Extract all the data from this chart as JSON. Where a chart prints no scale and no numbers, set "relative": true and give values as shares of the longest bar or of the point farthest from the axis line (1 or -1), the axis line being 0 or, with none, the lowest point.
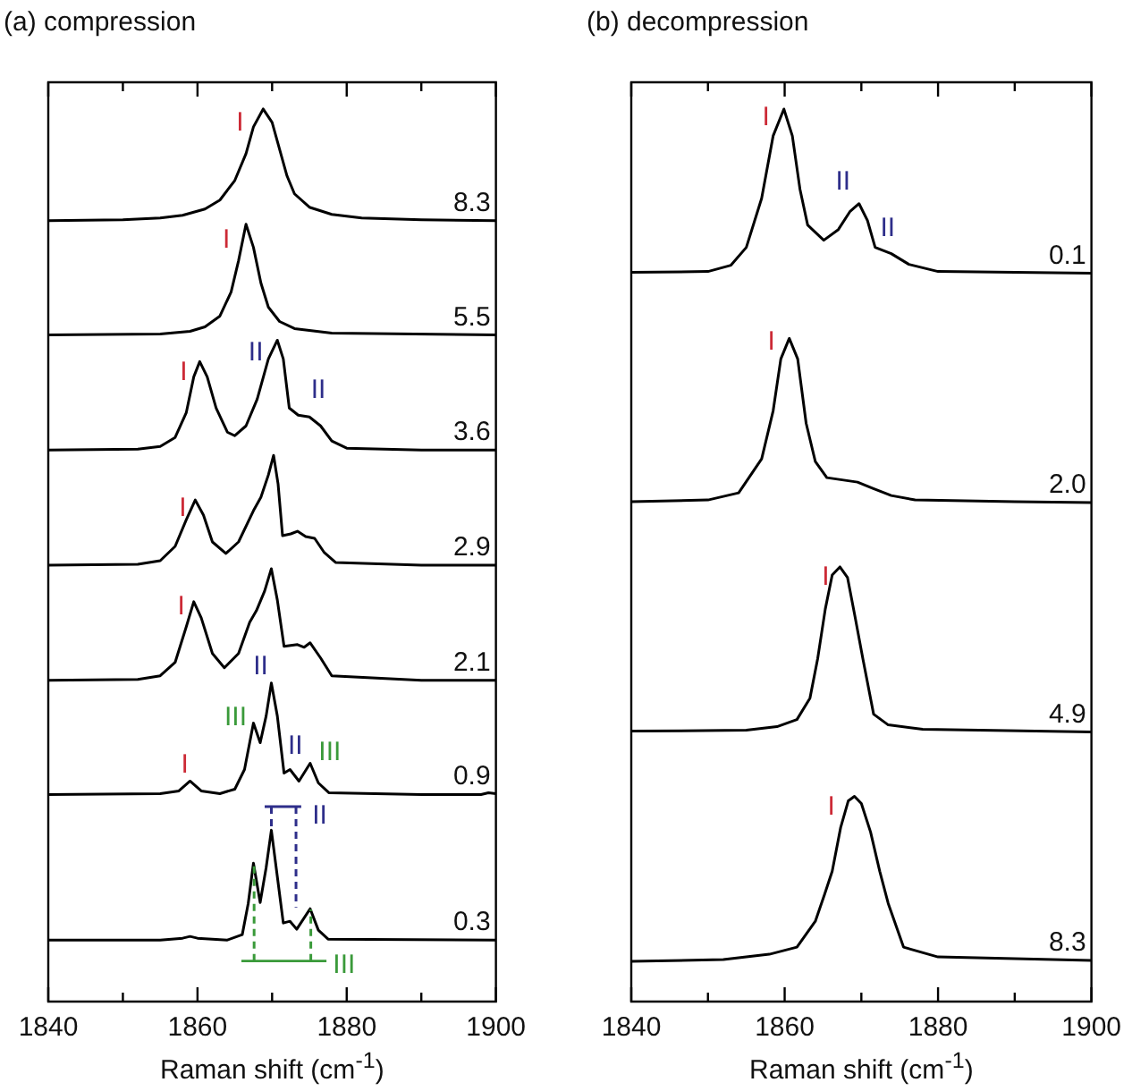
{
  "chart_data": [
    {
      "type": "line",
      "title": "(a) compression",
      "xlabel": "Raman shift (cm$^{-1}$)",
      "relative": true,
      "xlim": [
        1840,
        1900
      ],
      "xticks": [
        1840,
        {
          "value": 1850,
          "label": null
        },
        1860,
        {
          "value": 1870,
          "label": null
        },
        1880,
        {
          "value": 1890,
          "label": null
        },
        1900
      ],
      "tick_labels": "x",
      "marker": "none",
      "line_style": "solid",
      "series": [
        {
          "name": "8.3",
          "color": "#000000",
          "x": [
            1840,
            1850,
            1855,
            1858,
            1861,
            1863,
            1865,
            1866.5,
            1867.5,
            1868.8,
            1870,
            1871,
            1872,
            1873,
            1875,
            1878,
            1882,
            1890,
            1900
          ],
          "values": [
            0.875,
            0.876,
            0.878,
            0.881,
            0.888,
            0.898,
            0.92,
            0.95,
            0.98,
            1.0,
            0.985,
            0.955,
            0.925,
            0.905,
            0.89,
            0.882,
            0.878,
            0.876,
            0.875
          ]
        },
        {
          "name": "5.5",
          "color": "#000000",
          "x": [
            1840,
            1855,
            1859,
            1861,
            1863,
            1864.5,
            1865.5,
            1866.5,
            1867.5,
            1868.5,
            1869.5,
            1871,
            1873,
            1878,
            1900
          ],
          "values": [
            0.747,
            0.748,
            0.751,
            0.756,
            0.768,
            0.795,
            0.83,
            0.871,
            0.845,
            0.805,
            0.778,
            0.762,
            0.754,
            0.749,
            0.747
          ]
        },
        {
          "name": "3.6",
          "color": "#000000",
          "x": [
            1840,
            1852,
            1855,
            1857,
            1858.5,
            1859.5,
            1860.3,
            1861.3,
            1862.5,
            1864,
            1865,
            1866.5,
            1868,
            1869.5,
            1870.7,
            1871.5,
            1872.3,
            1873.5,
            1875,
            1876.5,
            1878,
            1880,
            1890,
            1900
          ],
          "values": [
            0.618,
            0.619,
            0.622,
            0.632,
            0.66,
            0.7,
            0.717,
            0.7,
            0.665,
            0.638,
            0.634,
            0.645,
            0.675,
            0.72,
            0.741,
            0.72,
            0.665,
            0.657,
            0.655,
            0.645,
            0.628,
            0.62,
            0.618,
            0.618
          ]
        },
        {
          "name": "2.9",
          "color": "#000000",
          "x": [
            1840,
            1852,
            1855,
            1857,
            1858.5,
            1859.7,
            1860.8,
            1862,
            1863.8,
            1865.5,
            1867.5,
            1868.5,
            1869.5,
            1870.2,
            1870.8,
            1871.4,
            1872.5,
            1873.4,
            1874.5,
            1875.7,
            1877,
            1878.5,
            1890,
            1900
          ],
          "values": [
            0.489,
            0.49,
            0.494,
            0.51,
            0.54,
            0.562,
            0.545,
            0.515,
            0.502,
            0.515,
            0.55,
            0.565,
            0.59,
            0.612,
            0.58,
            0.522,
            0.524,
            0.527,
            0.521,
            0.519,
            0.503,
            0.492,
            0.489,
            0.489
          ]
        },
        {
          "name": "2.1",
          "color": "#000000",
          "x": [
            1840,
            1852,
            1855,
            1857,
            1858.5,
            1859.5,
            1860.5,
            1862,
            1863.6,
            1865.5,
            1867,
            1867.9,
            1869,
            1869.9,
            1870.7,
            1871.6,
            1873.4,
            1874.3,
            1875.1,
            1876.5,
            1878,
            1890,
            1900
          ],
          "values": [
            0.36,
            0.361,
            0.365,
            0.38,
            0.42,
            0.448,
            0.43,
            0.39,
            0.374,
            0.39,
            0.425,
            0.438,
            0.46,
            0.485,
            0.45,
            0.398,
            0.4,
            0.397,
            0.402,
            0.385,
            0.365,
            0.36,
            0.36
          ]
        },
        {
          "name": "0.9",
          "color": "#000000",
          "x": [
            1840,
            1855,
            1857.5,
            1859,
            1860.5,
            1863,
            1865,
            1866.3,
            1867.5,
            1868.4,
            1869.2,
            1869.9,
            1870.7,
            1871.6,
            1872.4,
            1873.6,
            1875.1,
            1876.2,
            1877.6,
            1890,
            1898,
            1899,
            1900
          ],
          "values": [
            0.232,
            0.233,
            0.236,
            0.247,
            0.236,
            0.233,
            0.238,
            0.26,
            0.312,
            0.29,
            0.32,
            0.357,
            0.32,
            0.256,
            0.26,
            0.247,
            0.267,
            0.245,
            0.234,
            0.232,
            0.232,
            0.234,
            0.233
          ]
        },
        {
          "name": "0.3",
          "color": "#000000",
          "x": [
            1840,
            1855,
            1858,
            1859,
            1860,
            1864,
            1866,
            1866.8,
            1867.5,
            1868.4,
            1869.2,
            1869.9,
            1870.7,
            1871.5,
            1872.4,
            1873.3,
            1875.1,
            1876.2,
            1877.5,
            1900
          ],
          "values": [
            0.069,
            0.069,
            0.071,
            0.073,
            0.071,
            0.069,
            0.075,
            0.11,
            0.155,
            0.111,
            0.15,
            0.192,
            0.14,
            0.088,
            0.09,
            0.081,
            0.104,
            0.08,
            0.07,
            0.069
          ]
        }
      ],
      "annotations": [
        {
          "text": "I",
          "x": 1868.8,
          "y": 1.0
        },
        {
          "text": "I",
          "x": 1866.5,
          "y": 0.871
        },
        {
          "text": "I",
          "x": 1860.3,
          "y": 0.717
        },
        {
          "text": "II",
          "x": 1870.7,
          "y": 0.741
        },
        {
          "text": "II",
          "x": 1875,
          "y": 0.655
        },
        {
          "text": "I",
          "x": 1859.7,
          "y": 0.562
        },
        {
          "text": "I",
          "x": 1859.5,
          "y": 0.448
        },
        {
          "text": "II",
          "x": 1869.9,
          "y": 0.357
        },
        {
          "text": "III",
          "x": 1867.5,
          "y": 0.312
        },
        {
          "text": "II",
          "x": 1872.4,
          "y": 0.26
        },
        {
          "text": "III",
          "x": 1875.1,
          "y": 0.267
        },
        {
          "text": "I",
          "x": 1859,
          "y": 0.247
        },
        {
          "text": "II",
          "x": 1869.9,
          "y": 0.192
        },
        {
          "text": "III",
          "x": 1875.1,
          "y": 0.104
        }
      ]
    },
    {
      "type": "line",
      "title": "(b) decompression",
      "xlabel": "Raman shift (cm$^{-1}$)",
      "relative": true,
      "xlim": [
        1840,
        1900
      ],
      "xticks": [
        1840,
        {
          "value": 1850,
          "label": null
        },
        1860,
        {
          "value": 1870,
          "label": null
        },
        1880,
        {
          "value": 1890,
          "label": null
        },
        1900
      ],
      "tick_labels": "x",
      "marker": "none",
      "line_style": "solid",
      "series": [
        {
          "name": "0.1",
          "color": "#000000",
          "x": [
            1840,
            1850,
            1853,
            1855,
            1857,
            1858.5,
            1859.9,
            1861,
            1862,
            1863,
            1865.1,
            1867,
            1868.5,
            1869.7,
            1870.8,
            1871.8,
            1873.9,
            1876.2,
            1880,
            1890,
            1900
          ],
          "values": [
            0.817,
            0.818,
            0.825,
            0.845,
            0.9,
            0.97,
            1.0,
            0.97,
            0.91,
            0.87,
            0.853,
            0.865,
            0.885,
            0.894,
            0.875,
            0.845,
            0.838,
            0.826,
            0.818,
            0.817,
            0.816
          ]
        },
        {
          "name": "2.0",
          "color": "#000000",
          "x": [
            1840,
            1850,
            1854,
            1857,
            1858.5,
            1859.5,
            1860.6,
            1861.7,
            1862.8,
            1864,
            1865.5,
            1869.5,
            1871.5,
            1873.9,
            1877,
            1890,
            1900
          ],
          "values": [
            0.56,
            0.562,
            0.57,
            0.608,
            0.662,
            0.72,
            0.743,
            0.72,
            0.648,
            0.605,
            0.587,
            0.582,
            0.575,
            0.567,
            0.562,
            0.56,
            0.559
          ]
        },
        {
          "name": "4.9",
          "color": "#000000",
          "x": [
            1840,
            1855,
            1859,
            1861.6,
            1863.3,
            1864.3,
            1865.3,
            1866.2,
            1867.2,
            1868.2,
            1869.2,
            1870.2,
            1871.6,
            1873.5,
            1878,
            1900
          ],
          "values": [
            0.303,
            0.304,
            0.308,
            0.316,
            0.34,
            0.384,
            0.44,
            0.478,
            0.487,
            0.475,
            0.43,
            0.384,
            0.322,
            0.31,
            0.305,
            0.302
          ]
        },
        {
          "name": "8.3",
          "color": "#000000",
          "x": [
            1840,
            1852,
            1858,
            1861.6,
            1864,
            1865.2,
            1866.2,
            1867.3,
            1868.3,
            1869.1,
            1870,
            1871.2,
            1872.4,
            1873.5,
            1875.5,
            1880,
            1900
          ],
          "values": [
            0.045,
            0.047,
            0.053,
            0.061,
            0.09,
            0.12,
            0.146,
            0.195,
            0.225,
            0.23,
            0.222,
            0.19,
            0.146,
            0.11,
            0.061,
            0.05,
            0.046
          ]
        }
      ],
      "annotations": [
        {
          "text": "I",
          "x": 1859.9,
          "y": 1.0
        },
        {
          "text": "II",
          "x": 1869.7,
          "y": 0.894
        },
        {
          "text": "II",
          "x": 1873.9,
          "y": 0.838
        },
        {
          "text": "I",
          "x": 1860.6,
          "y": 0.743
        },
        {
          "text": "I",
          "x": 1867.2,
          "y": 0.487
        },
        {
          "text": "I",
          "x": 1869.1,
          "y": 0.23
        }
      ]
    }
  ]
}
